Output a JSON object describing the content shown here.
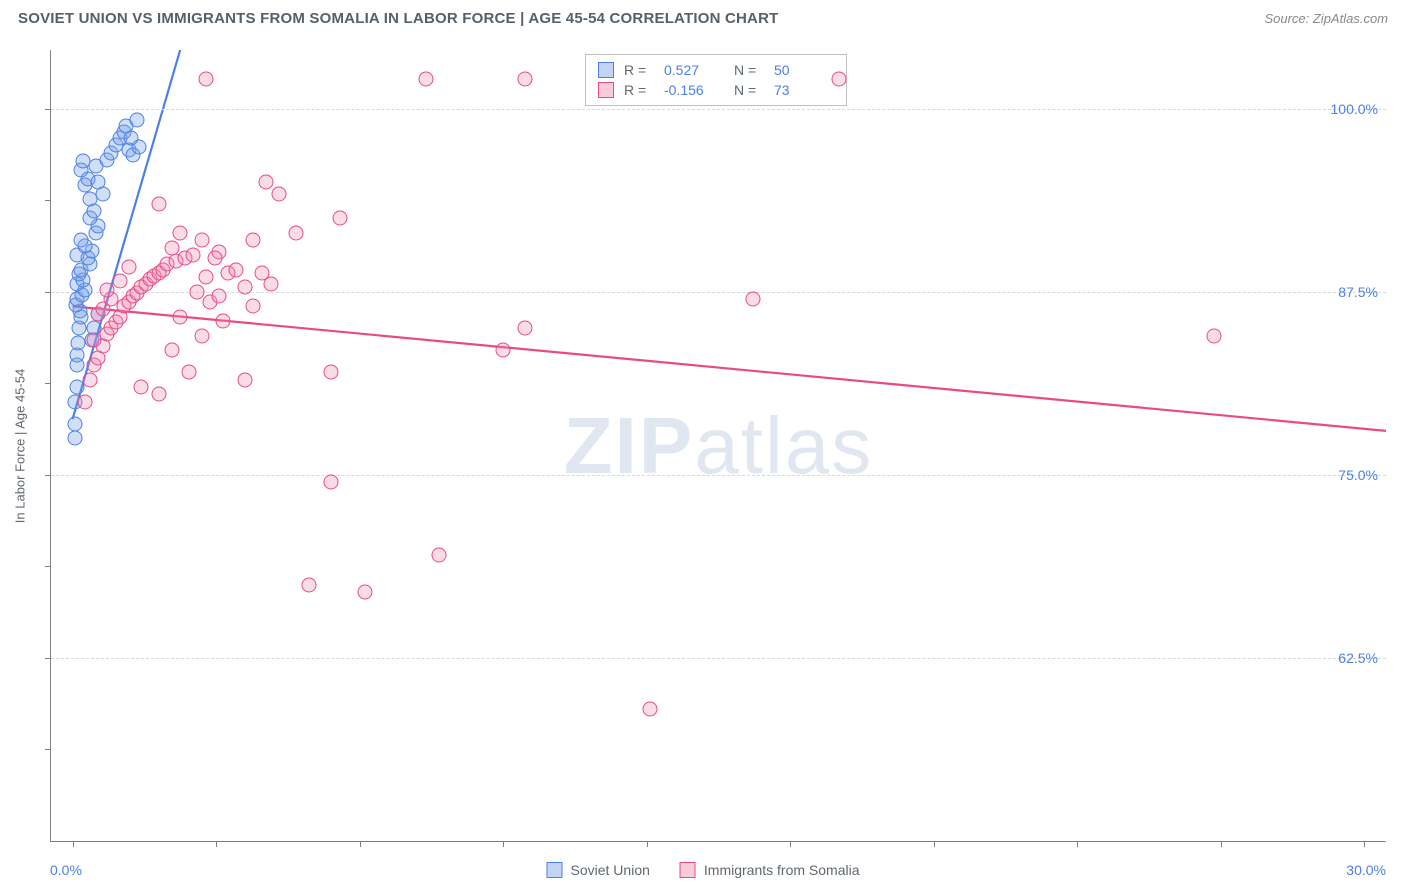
{
  "header": {
    "title": "SOVIET UNION VS IMMIGRANTS FROM SOMALIA IN LABOR FORCE | AGE 45-54 CORRELATION CHART",
    "source": "Source: ZipAtlas.com"
  },
  "axes": {
    "y_title": "In Labor Force | Age 45-54",
    "x_min_label": "0.0%",
    "x_max_label": "30.0%",
    "xlim": [
      -0.5,
      30.5
    ],
    "ylim": [
      50,
      104
    ],
    "y_gridlines": [
      {
        "value": 62.5,
        "label": "62.5%"
      },
      {
        "value": 75.0,
        "label": "75.0%"
      },
      {
        "value": 87.5,
        "label": "87.5%"
      },
      {
        "value": 100.0,
        "label": "100.0%"
      }
    ],
    "x_ticks": [
      0,
      3.33,
      6.67,
      10,
      13.33,
      16.67,
      20,
      23.33,
      26.67,
      30
    ],
    "y_ticks": [
      56.25,
      62.5,
      68.75,
      75,
      81.25,
      87.5,
      93.75,
      100
    ],
    "grid_color": "#d8d8d8",
    "axis_color": "#808080"
  },
  "watermark_parts": {
    "bold": "ZIP",
    "light": "atlas"
  },
  "series": [
    {
      "id": "soviet",
      "label": "Soviet Union",
      "color_fill": "rgba(120,160,230,0.35)",
      "color_stroke": "#4a80e8",
      "stats": {
        "R": "0.527",
        "N": "50"
      },
      "trend": {
        "x1": 0.0,
        "y1": 78.8,
        "x2": 2.5,
        "y2": 104.0,
        "width": 2.2
      },
      "points": [
        [
          0.05,
          77.5
        ],
        [
          0.06,
          78.5
        ],
        [
          0.05,
          80.0
        ],
        [
          0.1,
          81.0
        ],
        [
          0.1,
          82.5
        ],
        [
          0.1,
          83.2
        ],
        [
          0.12,
          84.0
        ],
        [
          0.15,
          85.0
        ],
        [
          0.2,
          85.8
        ],
        [
          0.18,
          86.2
        ],
        [
          0.08,
          86.6
        ],
        [
          0.1,
          87.0
        ],
        [
          0.22,
          87.3
        ],
        [
          0.3,
          87.6
        ],
        [
          0.1,
          88.0
        ],
        [
          0.25,
          88.3
        ],
        [
          0.15,
          88.7
        ],
        [
          0.2,
          89.0
        ],
        [
          0.4,
          89.4
        ],
        [
          0.35,
          89.8
        ],
        [
          0.1,
          90.0
        ],
        [
          0.45,
          90.3
        ],
        [
          0.3,
          90.6
        ],
        [
          0.2,
          91.0
        ],
        [
          0.55,
          91.5
        ],
        [
          0.6,
          92.0
        ],
        [
          0.4,
          92.5
        ],
        [
          0.5,
          93.0
        ],
        [
          0.4,
          93.8
        ],
        [
          0.7,
          94.2
        ],
        [
          0.3,
          94.8
        ],
        [
          0.35,
          95.2
        ],
        [
          0.6,
          95.0
        ],
        [
          0.2,
          95.8
        ],
        [
          0.25,
          96.4
        ],
        [
          0.55,
          96.1
        ],
        [
          0.8,
          96.5
        ],
        [
          0.9,
          97.0
        ],
        [
          1.0,
          97.5
        ],
        [
          1.1,
          98.0
        ],
        [
          1.2,
          98.4
        ],
        [
          1.3,
          97.2
        ],
        [
          1.4,
          96.8
        ],
        [
          1.25,
          98.8
        ],
        [
          1.5,
          99.2
        ],
        [
          1.55,
          97.4
        ],
        [
          1.35,
          98.0
        ],
        [
          0.5,
          85.0
        ],
        [
          0.45,
          84.2
        ],
        [
          0.6,
          86.0
        ]
      ]
    },
    {
      "id": "somalia",
      "label": "Immigrants from Somalia",
      "color_fill": "rgba(240,140,175,0.30)",
      "color_stroke": "#e84a88",
      "stats": {
        "R": "-0.156",
        "N": "73"
      },
      "trend": {
        "x1": 0.0,
        "y1": 86.5,
        "x2": 30.5,
        "y2": 78.0,
        "width": 2.2
      },
      "points": [
        [
          0.3,
          80.0
        ],
        [
          0.4,
          81.5
        ],
        [
          0.5,
          82.5
        ],
        [
          0.6,
          83.0
        ],
        [
          0.7,
          83.8
        ],
        [
          0.5,
          84.2
        ],
        [
          0.8,
          84.6
        ],
        [
          0.9,
          85.0
        ],
        [
          1.0,
          85.4
        ],
        [
          1.1,
          85.8
        ],
        [
          0.6,
          86.0
        ],
        [
          0.7,
          86.3
        ],
        [
          1.2,
          86.5
        ],
        [
          1.3,
          86.8
        ],
        [
          0.9,
          87.0
        ],
        [
          1.4,
          87.2
        ],
        [
          1.5,
          87.4
        ],
        [
          0.8,
          87.6
        ],
        [
          1.6,
          87.8
        ],
        [
          1.7,
          88.0
        ],
        [
          1.1,
          88.2
        ],
        [
          1.8,
          88.4
        ],
        [
          1.9,
          88.6
        ],
        [
          2.0,
          88.8
        ],
        [
          2.1,
          89.0
        ],
        [
          1.3,
          89.2
        ],
        [
          2.2,
          89.4
        ],
        [
          2.4,
          89.6
        ],
        [
          2.6,
          89.8
        ],
        [
          2.8,
          90.0
        ],
        [
          3.0,
          84.5
        ],
        [
          3.2,
          86.8
        ],
        [
          2.5,
          85.8
        ],
        [
          3.1,
          88.5
        ],
        [
          2.7,
          82.0
        ],
        [
          2.3,
          83.5
        ],
        [
          1.6,
          81.0
        ],
        [
          2.0,
          80.5
        ],
        [
          3.4,
          87.2
        ],
        [
          3.6,
          88.8
        ],
        [
          2.9,
          87.5
        ],
        [
          3.8,
          89.0
        ],
        [
          4.0,
          87.8
        ],
        [
          3.5,
          85.5
        ],
        [
          4.2,
          86.5
        ],
        [
          4.4,
          88.8
        ],
        [
          4.6,
          88.0
        ],
        [
          4.0,
          81.5
        ],
        [
          2.3,
          90.5
        ],
        [
          3.0,
          91.0
        ],
        [
          2.5,
          91.5
        ],
        [
          3.4,
          90.2
        ],
        [
          4.2,
          91.0
        ],
        [
          4.8,
          94.2
        ],
        [
          5.2,
          91.5
        ],
        [
          6.2,
          92.5
        ],
        [
          6.0,
          82.0
        ],
        [
          5.5,
          67.5
        ],
        [
          6.0,
          74.5
        ],
        [
          6.8,
          67.0
        ],
        [
          8.2,
          102.0
        ],
        [
          8.5,
          69.5
        ],
        [
          10.5,
          85.0
        ],
        [
          10.5,
          102.0
        ],
        [
          10.0,
          83.5
        ],
        [
          13.4,
          59.0
        ],
        [
          15.8,
          87.0
        ],
        [
          17.8,
          102.0
        ],
        [
          26.5,
          84.5
        ],
        [
          3.1,
          102.0
        ],
        [
          2.0,
          93.5
        ],
        [
          3.3,
          89.8
        ],
        [
          4.5,
          95.0
        ]
      ]
    }
  ],
  "legend_bottom": [
    {
      "swatch": "blue",
      "label": "Soviet Union"
    },
    {
      "swatch": "pink",
      "label": "Immigrants from Somalia"
    }
  ],
  "stats_labels": {
    "R": "R =",
    "N": "N ="
  }
}
